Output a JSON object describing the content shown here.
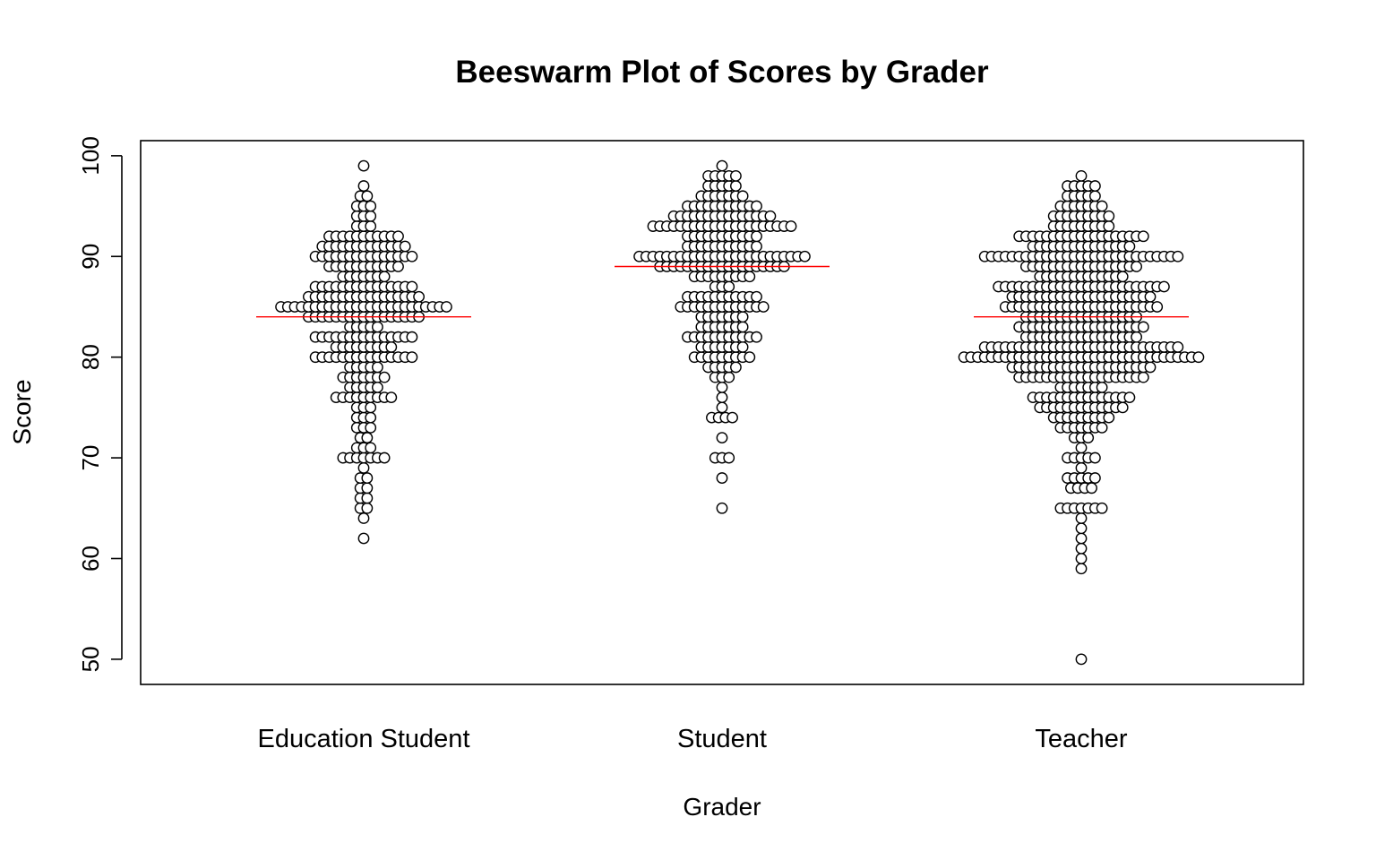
{
  "chart_data": {
    "type": "beeswarm",
    "title": "Beeswarm Plot of Scores by Grader",
    "xlabel": "Grader",
    "ylabel": "Score",
    "ylim": [
      47.5,
      101.5
    ],
    "yticks": [
      50,
      60,
      70,
      80,
      90,
      100
    ],
    "categories": [
      "Education Student",
      "Student",
      "Teacher"
    ],
    "colors": {
      "point_stroke": "#000000",
      "point_fill": "#ffffff",
      "median_line": "#ff0000",
      "frame": "#000000"
    },
    "groups": [
      {
        "name": "Education Student",
        "median": 84,
        "counts": {
          "62": 1,
          "64": 1,
          "65": 2,
          "66": 2,
          "67": 2,
          "68": 2,
          "69": 1,
          "70": 7,
          "71": 3,
          "72": 2,
          "73": 3,
          "74": 3,
          "75": 3,
          "76": 9,
          "77": 5,
          "78": 7,
          "79": 5,
          "80": 15,
          "81": 9,
          "82": 15,
          "83": 5,
          "84": 17,
          "85": 25,
          "86": 17,
          "87": 15,
          "88": 7,
          "89": 11,
          "90": 15,
          "91": 13,
          "92": 11,
          "93": 3,
          "94": 3,
          "95": 3,
          "96": 2,
          "97": 1,
          "99": 1
        }
      },
      {
        "name": "Student",
        "median": 89,
        "counts": {
          "65": 1,
          "68": 1,
          "70": 3,
          "72": 1,
          "74": 4,
          "75": 1,
          "76": 1,
          "77": 1,
          "78": 3,
          "79": 5,
          "80": 9,
          "81": 7,
          "82": 11,
          "83": 7,
          "84": 7,
          "85": 13,
          "86": 11,
          "87": 3,
          "88": 9,
          "89": 19,
          "90": 25,
          "91": 11,
          "92": 11,
          "93": 21,
          "94": 15,
          "95": 11,
          "96": 7,
          "97": 5,
          "98": 5,
          "99": 1
        }
      },
      {
        "name": "Teacher",
        "median": 84,
        "counts": {
          "50": 1,
          "59": 1,
          "60": 1,
          "61": 1,
          "62": 1,
          "63": 1,
          "64": 1,
          "65": 7,
          "67": 4,
          "68": 5,
          "69": 1,
          "70": 5,
          "71": 1,
          "72": 3,
          "73": 7,
          "74": 9,
          "75": 13,
          "76": 15,
          "77": 7,
          "78": 19,
          "79": 21,
          "80": 35,
          "81": 29,
          "82": 17,
          "83": 19,
          "84": 17,
          "85": 23,
          "86": 21,
          "87": 25,
          "88": 13,
          "89": 17,
          "90": 29,
          "91": 15,
          "92": 19,
          "93": 9,
          "94": 9,
          "95": 7,
          "96": 5,
          "97": 5,
          "98": 1
        }
      }
    ]
  }
}
